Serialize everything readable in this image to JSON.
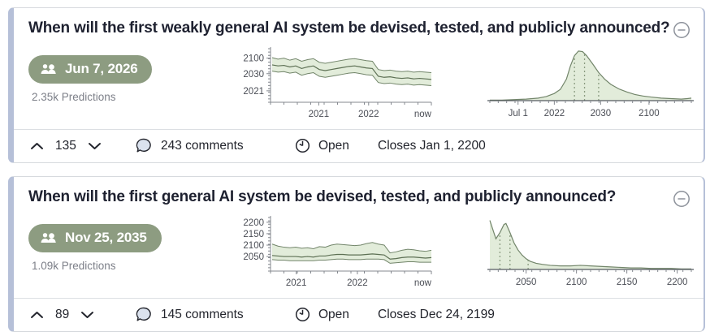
{
  "colors": {
    "accent_strip": "#b6c0d8",
    "badge_green": "#8d9c81",
    "chart_fill": "#e2ecda",
    "chart_stroke": "#72856a",
    "chart_median": "#5d7054",
    "quartile_dotted": "#8a9b80",
    "axis": "#84888f",
    "tick_text": "#4a4d55"
  },
  "cards": [
    {
      "title": "When will the first weakly general AI system be devised, tested, and publicly announced?",
      "badge_date": "Jun 7, 2026",
      "predictions": "2.35k Predictions",
      "votes": "135",
      "comments": "243 comments",
      "status": "Open",
      "closes": "Closes Jan 1, 2200",
      "timeseries": {
        "type": "band-line",
        "yticks": [
          [
            "2100",
            0.15
          ],
          [
            "2030",
            0.45
          ],
          [
            "2021",
            0.78
          ]
        ],
        "xticks": [
          [
            "2021",
            0.3
          ],
          [
            "2022",
            0.61
          ],
          [
            "now",
            1.0
          ]
        ],
        "upper": [
          86,
          83,
          85,
          81,
          84,
          79,
          82,
          84,
          77,
          75,
          77,
          79,
          81,
          83,
          84,
          82,
          80,
          79,
          63,
          61,
          62,
          60,
          59,
          60,
          58,
          59,
          58,
          57
        ],
        "median": [
          72,
          70,
          71,
          68,
          70,
          65,
          68,
          70,
          63,
          61,
          63,
          65,
          67,
          69,
          70,
          68,
          66,
          65,
          50,
          48,
          49,
          47,
          46,
          47,
          45,
          46,
          45,
          44
        ],
        "lower": [
          60,
          58,
          59,
          56,
          58,
          52,
          55,
          57,
          50,
          48,
          50,
          52,
          54,
          56,
          57,
          55,
          53,
          52,
          38,
          36,
          37,
          35,
          34,
          35,
          33,
          34,
          33,
          32
        ]
      },
      "distribution": {
        "type": "density",
        "xticks": [
          [
            "Jul 1",
            0.14
          ],
          [
            "2022",
            0.32
          ],
          [
            "2030",
            0.55
          ],
          [
            "2100",
            0.79
          ]
        ],
        "points": [
          [
            0,
            1
          ],
          [
            6,
            1
          ],
          [
            12,
            2
          ],
          [
            18,
            3
          ],
          [
            24,
            5
          ],
          [
            28,
            8
          ],
          [
            32,
            14
          ],
          [
            35,
            22
          ],
          [
            38,
            42
          ],
          [
            40,
            68
          ],
          [
            42,
            88
          ],
          [
            44,
            97
          ],
          [
            46,
            96
          ],
          [
            48,
            88
          ],
          [
            51,
            72
          ],
          [
            54,
            55
          ],
          [
            57,
            42
          ],
          [
            60,
            32
          ],
          [
            64,
            23
          ],
          [
            68,
            17
          ],
          [
            72,
            12
          ],
          [
            76,
            9
          ],
          [
            80,
            7
          ],
          [
            85,
            5
          ],
          [
            90,
            4
          ],
          [
            95,
            3
          ],
          [
            98,
            4
          ],
          [
            100,
            5
          ]
        ],
        "quartiles": [
          42,
          47,
          54
        ]
      }
    },
    {
      "title": "When will the first general AI system be devised, tested, and publicly announced?",
      "badge_date": "Nov 25, 2035",
      "predictions": "1.09k Predictions",
      "votes": "89",
      "comments": "145 comments",
      "status": "Open",
      "closes": "Closes Dec 24, 2199",
      "timeseries": {
        "type": "band-line",
        "yticks": [
          [
            "2200",
            0.06
          ],
          [
            "2150",
            0.28
          ],
          [
            "2100",
            0.5
          ],
          [
            "2050",
            0.72
          ]
        ],
        "xticks": [
          [
            "2021",
            0.16
          ],
          [
            "2022",
            0.54
          ],
          [
            "now",
            1.0
          ]
        ],
        "upper": [
          52,
          48,
          46,
          45,
          46,
          44,
          45,
          43,
          47,
          46,
          50,
          52,
          51,
          50,
          49,
          50,
          53,
          55,
          52,
          50,
          35,
          37,
          40,
          42,
          41,
          39,
          38,
          40
        ],
        "median": [
          30,
          29,
          28,
          28,
          28,
          27,
          28,
          27,
          29,
          29,
          31,
          32,
          32,
          31,
          31,
          31,
          32,
          33,
          32,
          31,
          23,
          24,
          26,
          27,
          27,
          26,
          25,
          26
        ],
        "lower": [
          22,
          21,
          21,
          20,
          20,
          20,
          20,
          20,
          21,
          21,
          22,
          23,
          23,
          22,
          22,
          22,
          23,
          23,
          23,
          22,
          15,
          16,
          17,
          18,
          18,
          17,
          17,
          17
        ]
      },
      "distribution": {
        "type": "density",
        "xticks": [
          [
            "2050",
            0.18
          ],
          [
            "2100",
            0.43
          ],
          [
            "2150",
            0.68
          ],
          [
            "2200",
            0.93
          ]
        ],
        "points": [
          [
            0,
            96
          ],
          [
            2,
            72
          ],
          [
            3,
            60
          ],
          [
            5,
            72
          ],
          [
            7,
            88
          ],
          [
            8,
            90
          ],
          [
            10,
            72
          ],
          [
            12,
            52
          ],
          [
            14,
            38
          ],
          [
            16,
            28
          ],
          [
            18,
            21
          ],
          [
            20,
            16
          ],
          [
            23,
            12
          ],
          [
            26,
            10
          ],
          [
            30,
            8
          ],
          [
            35,
            7
          ],
          [
            40,
            7
          ],
          [
            45,
            8
          ],
          [
            50,
            7
          ],
          [
            55,
            6
          ],
          [
            60,
            5
          ],
          [
            65,
            4
          ],
          [
            70,
            3
          ],
          [
            75,
            3
          ],
          [
            80,
            2
          ],
          [
            85,
            2
          ],
          [
            90,
            2
          ],
          [
            95,
            1
          ],
          [
            100,
            1
          ]
        ],
        "quartiles": [
          5,
          10,
          19
        ]
      }
    }
  ]
}
